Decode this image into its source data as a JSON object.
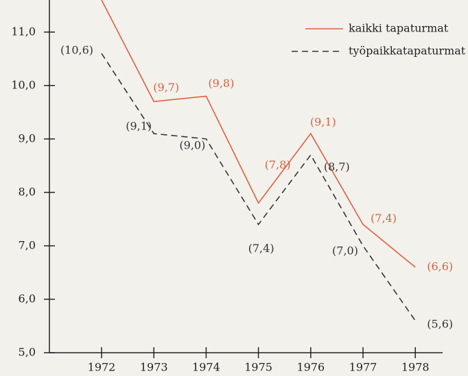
{
  "chart_data": {
    "type": "line",
    "categories": [
      "1972",
      "1973",
      "1974",
      "1975",
      "1976",
      "1977",
      "1978"
    ],
    "series": [
      {
        "name": "kaikki tapaturmat",
        "color": "#d9603f",
        "dash": false,
        "values": [
          11.6,
          9.7,
          9.8,
          7.8,
          9.1,
          7.4,
          6.6
        ],
        "value_labels": [
          null,
          "(9,7)",
          "(9,8)",
          "(7,8)",
          "(9,1)",
          "(7,4)",
          "(6,6)"
        ]
      },
      {
        "name": "työpaikkatapaturmat",
        "color": "#333333",
        "dash": true,
        "values": [
          10.6,
          9.1,
          9.0,
          7.4,
          8.7,
          7.0,
          5.6
        ],
        "value_labels": [
          "(10,6)",
          "(9,1)",
          "(9,0)",
          "(7,4)",
          "(8,7)",
          "(7,0)",
          "(5,6)"
        ]
      }
    ],
    "ylim": [
      5,
      11.6
    ],
    "yticks": [
      {
        "value": 5,
        "label": "5,0"
      },
      {
        "value": 6,
        "label": "6,0"
      },
      {
        "value": 7,
        "label": "7,0"
      },
      {
        "value": 8,
        "label": "8,0"
      },
      {
        "value": 9,
        "label": "9,0"
      },
      {
        "value": 10,
        "label": "10,0"
      },
      {
        "value": 11,
        "label": "11,0"
      }
    ],
    "legend": "upper right"
  }
}
